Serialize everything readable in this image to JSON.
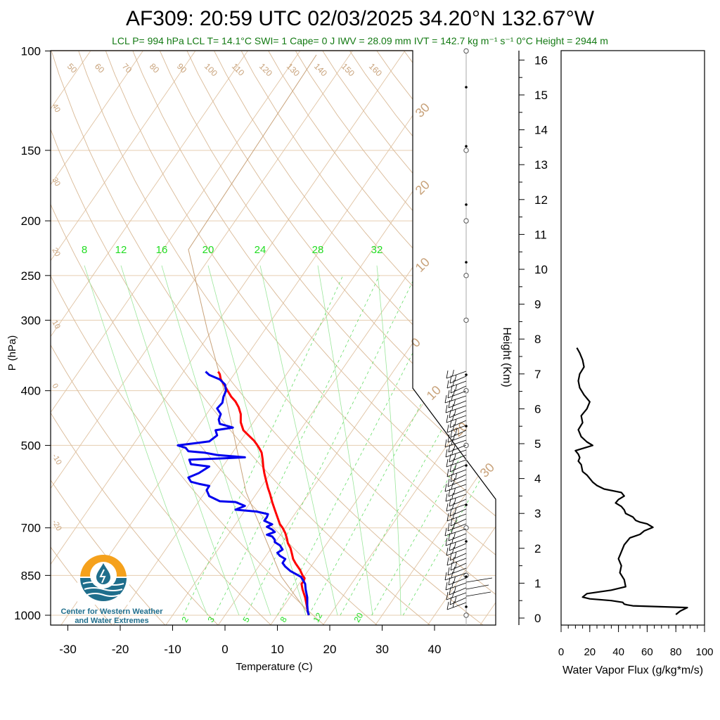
{
  "title": "AF309: 20:59 UTC 02/03/2025  34.20°N 132.67°W",
  "subtitle": "LCL P= 994 hPa  LCL T= 14.1°C  SWI= 1  Cape= 0 J  IWV = 28.09 mm  IVT = 142.7 kg m⁻¹ s⁻¹  0°C Height = 2944 m",
  "logo": {
    "line1": "Center for Western Weather",
    "line2": "and Water Extremes"
  },
  "colors": {
    "temperature": "#ff0000",
    "dewpoint": "#0000ee",
    "dry_adiabat": "#c8a27a",
    "mixing_ratio": "#33cc33",
    "subtitle": "#137a13",
    "logo_orange": "#f5a11c",
    "logo_blue": "#1f6e8c"
  },
  "chart_data": [
    {
      "type": "line",
      "name": "skew-t",
      "xlabel": "Temperature (C)",
      "ylabel": "P (hPa)",
      "x_ticks": [
        -30,
        -20,
        -10,
        0,
        10,
        20,
        30,
        40
      ],
      "y_ticks": [
        100,
        150,
        200,
        250,
        300,
        400,
        500,
        700,
        850,
        1000
      ],
      "y_scale": "log",
      "ylim": [
        1000,
        100
      ],
      "xlim": [
        -34,
        52
      ],
      "dry_adiabat_labels": [
        "50",
        "60",
        "70",
        "80",
        "90",
        "100",
        "110",
        "120",
        "130",
        "140",
        "150",
        "160"
      ],
      "isotherm_labels": [
        "40",
        "30",
        "20",
        "10",
        "0",
        "-10",
        "-20"
      ],
      "skewed_isotherm_labels": [
        "30",
        "20",
        "10",
        "0",
        "10",
        "20",
        "30"
      ],
      "mixing_ratio_top_labels": [
        "8",
        "12",
        "16",
        "20",
        "24",
        "28",
        "32"
      ],
      "mixing_ratio_bottom_labels": [
        "2",
        "3",
        "5",
        "8",
        "12",
        "20"
      ],
      "series": [
        {
          "name": "temperature",
          "points": [
            [
              16,
              1000
            ],
            [
              15.8,
              985
            ],
            [
              15.6,
              960
            ],
            [
              15.3,
              930
            ],
            [
              14.8,
              900
            ],
            [
              14.6,
              880
            ],
            [
              15.0,
              870
            ],
            [
              15.2,
              860
            ],
            [
              14.8,
              850
            ],
            [
              14.3,
              830
            ],
            [
              13.5,
              810
            ],
            [
              13.0,
              795
            ],
            [
              12.8,
              780
            ],
            [
              12.5,
              760
            ],
            [
              12.0,
              745
            ],
            [
              11.8,
              730
            ],
            [
              11.5,
              715
            ],
            [
              11.0,
              700
            ],
            [
              10.5,
              690
            ],
            [
              10.0,
              670
            ],
            [
              9.5,
              650
            ],
            [
              9.0,
              630
            ],
            [
              8.6,
              610
            ],
            [
              8.2,
              595
            ],
            [
              7.8,
              575
            ],
            [
              7.5,
              560
            ],
            [
              7.3,
              545
            ],
            [
              7.2,
              530
            ],
            [
              7.0,
              515
            ],
            [
              6.5,
              505
            ],
            [
              6.0,
              497
            ],
            [
              5.5,
              490
            ],
            [
              4.5,
              480
            ],
            [
              3.5,
              470
            ],
            [
              3.0,
              455
            ],
            [
              3.0,
              440
            ],
            [
              2.6,
              428
            ],
            [
              2.0,
              418
            ],
            [
              1.2,
              410
            ],
            [
              0.5,
              400
            ],
            [
              -0.2,
              390
            ],
            [
              -0.8,
              382
            ],
            [
              -1.0,
              374
            ],
            [
              -1.3,
              370
            ]
          ]
        },
        {
          "name": "dewpoint",
          "points": [
            [
              16,
              1000
            ],
            [
              15.8,
              985
            ],
            [
              15.7,
              960
            ],
            [
              15.7,
              930
            ],
            [
              15.4,
              900
            ],
            [
              15.3,
              880
            ],
            [
              15.0,
              870
            ],
            [
              14.5,
              855
            ],
            [
              13.5,
              845
            ],
            [
              12.5,
              835
            ],
            [
              11.5,
              820
            ],
            [
              11.0,
              808
            ],
            [
              11.5,
              795
            ],
            [
              10.5,
              785
            ],
            [
              10.0,
              775
            ],
            [
              11.0,
              765
            ],
            [
              10.5,
              752
            ],
            [
              9.5,
              742
            ],
            [
              9.5,
              735
            ],
            [
              9.0,
              725
            ],
            [
              8.0,
              720
            ],
            [
              9.5,
              712
            ],
            [
              9.0,
              705
            ],
            [
              8.0,
              697
            ],
            [
              9.0,
              690
            ],
            [
              7.5,
              680
            ],
            [
              8.0,
              670
            ],
            [
              8.2,
              662
            ],
            [
              6.0,
              655
            ],
            [
              2.0,
              650
            ],
            [
              3.8,
              640
            ],
            [
              2.0,
              630
            ],
            [
              -1.0,
              628
            ],
            [
              -3.0,
              615
            ],
            [
              -3.5,
              600
            ],
            [
              -3.0,
              590
            ],
            [
              -5.0,
              585
            ],
            [
              -6.5,
              580
            ],
            [
              -7.0,
              570
            ],
            [
              -5.0,
              560
            ],
            [
              -3.0,
              545
            ],
            [
              -6.5,
              540
            ],
            [
              -6.8,
              530
            ],
            [
              0.0,
              527
            ],
            [
              3.8,
              525
            ],
            [
              -1.5,
              520
            ],
            [
              -4.0,
              515
            ],
            [
              -7.0,
              512
            ],
            [
              -7.5,
              505
            ],
            [
              -9.0,
              500
            ],
            [
              -6.0,
              496
            ],
            [
              -3.0,
              492
            ],
            [
              -1.5,
              480
            ],
            [
              -1.8,
              470
            ],
            [
              1.5,
              465
            ],
            [
              -1.0,
              458
            ],
            [
              -1.2,
              450
            ],
            [
              -0.8,
              440
            ],
            [
              -1.5,
              430
            ],
            [
              -0.5,
              420
            ],
            [
              -0.3,
              410
            ],
            [
              0.2,
              400
            ],
            [
              0.0,
              390
            ],
            [
              -1.0,
              382
            ],
            [
              -3.0,
              375
            ],
            [
              -3.7,
              370
            ]
          ]
        }
      ]
    },
    {
      "type": "line",
      "name": "water-vapor-flux",
      "xlabel": "Water Vapor Flux (g/kg*m/s)",
      "ylabel": "Height (Km)",
      "x_ticks": [
        0,
        20,
        40,
        60,
        80,
        100
      ],
      "y_ticks": [
        0,
        1,
        2,
        3,
        4,
        5,
        6,
        7,
        8,
        9,
        10,
        11,
        12,
        13,
        14,
        15,
        16
      ],
      "xlim": [
        0,
        100
      ],
      "ylim": [
        -0.2,
        16.3
      ],
      "series": [
        {
          "name": "flux",
          "points": [
            [
              80,
              0.1
            ],
            [
              83,
              0.2
            ],
            [
              88,
              0.3
            ],
            [
              50,
              0.35
            ],
            [
              46,
              0.38
            ],
            [
              44,
              0.4
            ],
            [
              43,
              0.45
            ],
            [
              35,
              0.5
            ],
            [
              20,
              0.55
            ],
            [
              15,
              0.6
            ],
            [
              18,
              0.7
            ],
            [
              35,
              0.8
            ],
            [
              45,
              0.9
            ],
            [
              44,
              1.1
            ],
            [
              41,
              1.3
            ],
            [
              42,
              1.5
            ],
            [
              40,
              1.7
            ],
            [
              42,
              1.9
            ],
            [
              44,
              2.1
            ],
            [
              48,
              2.3
            ],
            [
              55,
              2.4
            ],
            [
              58,
              2.5
            ],
            [
              64,
              2.6
            ],
            [
              60,
              2.7
            ],
            [
              55,
              2.75
            ],
            [
              52,
              2.8
            ],
            [
              50,
              2.9
            ],
            [
              45,
              3.0
            ],
            [
              44,
              3.1
            ],
            [
              42,
              3.2
            ],
            [
              38,
              3.3
            ],
            [
              40,
              3.4
            ],
            [
              44,
              3.5
            ],
            [
              42,
              3.6
            ],
            [
              30,
              3.7
            ],
            [
              25,
              3.8
            ],
            [
              22,
              3.9
            ],
            [
              20,
              4.0
            ],
            [
              18,
              4.1
            ],
            [
              15,
              4.2
            ],
            [
              14,
              4.4
            ],
            [
              12,
              4.5
            ],
            [
              13,
              4.6
            ],
            [
              12,
              4.7
            ],
            [
              10,
              4.8
            ],
            [
              14,
              4.85
            ],
            [
              22,
              4.95
            ],
            [
              18,
              5.05
            ],
            [
              14,
              5.2
            ],
            [
              12,
              5.4
            ],
            [
              15,
              5.6
            ],
            [
              14,
              5.8
            ],
            [
              18,
              6.0
            ],
            [
              20,
              6.2
            ],
            [
              16,
              6.4
            ],
            [
              13,
              6.6
            ],
            [
              12,
              6.8
            ],
            [
              13,
              7.0
            ],
            [
              16,
              7.2
            ],
            [
              15,
              7.4
            ],
            [
              13,
              7.6
            ],
            [
              11,
              7.75
            ]
          ]
        }
      ]
    }
  ],
  "wind_barbs_label": "",
  "flag_levels_hpa": [
    100,
    150,
    200,
    250,
    300,
    400,
    500,
    700,
    850,
    1000
  ]
}
